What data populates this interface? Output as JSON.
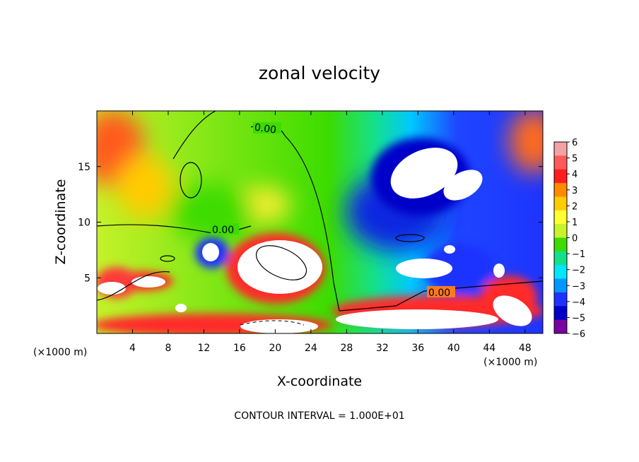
{
  "chart_data": {
    "type": "heatmap",
    "title": "zonal velocity",
    "xlabel": "X-coordinate",
    "ylabel": "Z-coordinate",
    "x_unit": "(×1000 m)",
    "y_unit": "(×1000 m)",
    "xlim": [
      0,
      50
    ],
    "ylim": [
      0,
      20
    ],
    "x_ticks": [
      "4",
      "8",
      "12",
      "16",
      "20",
      "24",
      "28",
      "32",
      "36",
      "40",
      "44",
      "48"
    ],
    "y_ticks": [
      "5",
      "10",
      "15"
    ],
    "colorbar": {
      "ticks": [
        "6",
        "5",
        "4",
        "3",
        "2",
        "1",
        "0",
        "−1",
        "−2",
        "−3",
        "−4",
        "−5",
        "−6"
      ],
      "range": [
        -6,
        6
      ],
      "colors": [
        "#f4a3a3",
        "#ff5a5a",
        "#ff1e1e",
        "#ff8a00",
        "#ffcc00",
        "#ffff33",
        "#c8f22a",
        "#3cdc00",
        "#14e08c",
        "#00e6ff",
        "#0096ff",
        "#1e32ff",
        "#0000c8",
        "#7800a0"
      ]
    },
    "contour_labels": [
      "0.00",
      "0.00",
      "0.00"
    ],
    "contour_interval_text": "CONTOUR INTERVAL = 1.000E+01",
    "out_of_range_color": "#ffffff"
  }
}
